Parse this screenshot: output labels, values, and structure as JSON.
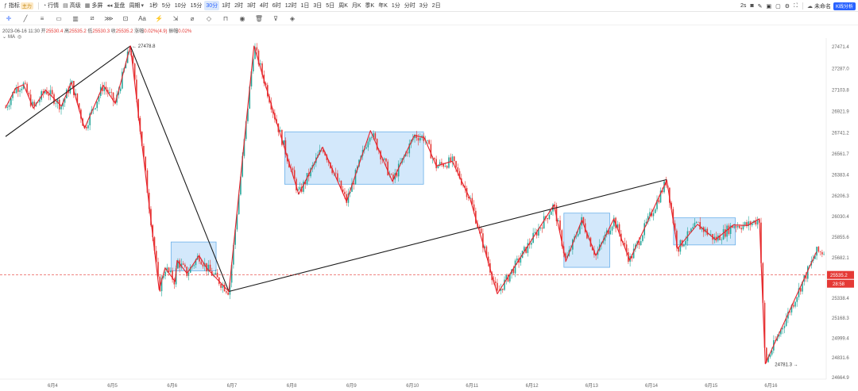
{
  "toolbar": {
    "indicator_label": "指标",
    "indicator_tag": "主力",
    "chat_label": "行情",
    "advanced_label": "高级",
    "multi_label": "多屏",
    "replay_label": "复盘",
    "period_label": "周期",
    "periods": [
      "1秒",
      "5分",
      "10分",
      "15分",
      "30分",
      "1时",
      "2时",
      "3时",
      "4时",
      "6时",
      "12时",
      "1日",
      "3日",
      "5日",
      "周K",
      "月K",
      "季K",
      "年K",
      "1分",
      "分时",
      "3分",
      "2日"
    ],
    "active_period": "30分",
    "right_interval": "2s",
    "unnamed_label": "未命名",
    "kline_label": "K线分析",
    "icons": [
      "camera-icon",
      "edit-icon",
      "save-icon",
      "expand-icon",
      "settings-icon",
      "fullscreen-icon",
      "cloud-icon"
    ]
  },
  "drawing_tools": [
    "crosshair-icon",
    "line-icon",
    "horizontal-line-icon",
    "rectangle-icon",
    "channel-icon",
    "fib-icon",
    "pattern-icon",
    "forecast-icon",
    "text-icon",
    "brush-icon",
    "measure-icon",
    "magnet-icon",
    "lock-icon",
    "eye-icon",
    "trash-icon",
    "filter-icon",
    "layers-icon"
  ],
  "legend": {
    "date": "2023-06-16 11:30",
    "open_label": "开",
    "open": "25530.4",
    "high_label": "高",
    "high": "25535.2",
    "low_label": "低",
    "low": "25530.3",
    "close_label": "收",
    "close": "25535.2",
    "change_label": "涨幅",
    "change": "0.02%(4.9)",
    "amp_label": "振幅",
    "amp": "0.02%",
    "ma_label": "MA"
  },
  "colors": {
    "up": "#26a69a",
    "down": "#e53935",
    "zigzag": "#e8202a",
    "trendline": "#1a1a1a",
    "box_fill": "#cfe6fb",
    "box_stroke": "#5aa8e8",
    "last_price": "#e53935"
  },
  "chart_data": {
    "type": "candlestick",
    "title": "",
    "x_axis": [
      "6月4",
      "6月5",
      "6月6",
      "6月7",
      "6月8",
      "6月9",
      "6月10",
      "6月11",
      "6月12",
      "6月13",
      "6月14",
      "6月15",
      "6月16"
    ],
    "y_axis": [
      "27471.4",
      "27287.0",
      "27103.8",
      "26921.9",
      "26741.2",
      "26561.7",
      "26383.4",
      "26206.3",
      "26030.4",
      "25855.6",
      "25682.1",
      "25535.2",
      "25338.4",
      "25168.3",
      "24999.4",
      "24831.6",
      "24664.9"
    ],
    "last_price": "25535.2",
    "countdown": "28:58",
    "annotations": [
      {
        "label": "27478.8",
        "note": "high"
      },
      {
        "label": "24781.3",
        "note": "low"
      }
    ],
    "zigzag_points": [
      {
        "t": 0.0,
        "v": 26955
      },
      {
        "t": 0.25,
        "v": 27120
      },
      {
        "t": 0.45,
        "v": 27150
      },
      {
        "t": 0.7,
        "v": 26950
      },
      {
        "t": 1.0,
        "v": 27105
      },
      {
        "t": 1.4,
        "v": 26968
      },
      {
        "t": 1.65,
        "v": 27170
      },
      {
        "t": 1.98,
        "v": 26780
      },
      {
        "t": 2.45,
        "v": 27145
      },
      {
        "t": 2.75,
        "v": 26990
      },
      {
        "t": 3.13,
        "v": 27478.8
      },
      {
        "t": 3.85,
        "v": 25410
      },
      {
        "t": 4.0,
        "v": 25595
      },
      {
        "t": 4.25,
        "v": 25480
      },
      {
        "t": 4.3,
        "v": 25658
      },
      {
        "t": 4.55,
        "v": 25548
      },
      {
        "t": 4.85,
        "v": 25700
      },
      {
        "t": 5.05,
        "v": 25590
      },
      {
        "t": 5.6,
        "v": 25395
      },
      {
        "t": 6.23,
        "v": 27478
      },
      {
        "t": 6.75,
        "v": 26880
      },
      {
        "t": 7.35,
        "v": 26220
      },
      {
        "t": 7.95,
        "v": 26620
      },
      {
        "t": 8.55,
        "v": 26160
      },
      {
        "t": 9.15,
        "v": 26760
      },
      {
        "t": 9.7,
        "v": 26330
      },
      {
        "t": 10.25,
        "v": 26720
      },
      {
        "t": 10.5,
        "v": 26700
      },
      {
        "t": 10.8,
        "v": 26460
      },
      {
        "t": 11.2,
        "v": 26500
      },
      {
        "t": 11.65,
        "v": 26180
      },
      {
        "t": 12.33,
        "v": 25375
      },
      {
        "t": 13.75,
        "v": 26130
      },
      {
        "t": 14.05,
        "v": 25652
      },
      {
        "t": 14.45,
        "v": 26000
      },
      {
        "t": 14.8,
        "v": 25700
      },
      {
        "t": 15.25,
        "v": 26010
      },
      {
        "t": 15.65,
        "v": 25660
      },
      {
        "t": 16.58,
        "v": 26340
      },
      {
        "t": 16.85,
        "v": 25760
      },
      {
        "t": 17.35,
        "v": 25965
      },
      {
        "t": 17.8,
        "v": 25835
      },
      {
        "t": 18.25,
        "v": 25960
      },
      {
        "t": 18.6,
        "v": 25955
      },
      {
        "t": 18.9,
        "v": 26012
      },
      {
        "t": 19.05,
        "v": 24781.3
      },
      {
        "t": 20.33,
        "v": 25730
      }
    ],
    "trendlines": [
      {
        "from": {
          "t": 0.0,
          "v": 26710
        },
        "to": {
          "t": 3.13,
          "v": 27478.8
        }
      },
      {
        "from": {
          "t": 3.13,
          "v": 27478.8
        },
        "to": {
          "t": 5.6,
          "v": 25395
        }
      },
      {
        "from": {
          "t": 5.6,
          "v": 25395
        },
        "to": {
          "t": 16.58,
          "v": 26345
        }
      }
    ],
    "boxes": [
      {
        "t0": 4.15,
        "t1": 5.28,
        "v0": 25815,
        "v1": 25570
      },
      {
        "t0": 7.0,
        "t1": 10.48,
        "v0": 26750,
        "v1": 26305
      },
      {
        "t0": 14.0,
        "t1": 15.15,
        "v0": 26060,
        "v1": 25600
      },
      {
        "t0": 16.75,
        "v0": 26020,
        "t1": 18.3,
        "v1": 25790
      }
    ],
    "ylim": [
      24664.9,
      27471.4
    ]
  }
}
